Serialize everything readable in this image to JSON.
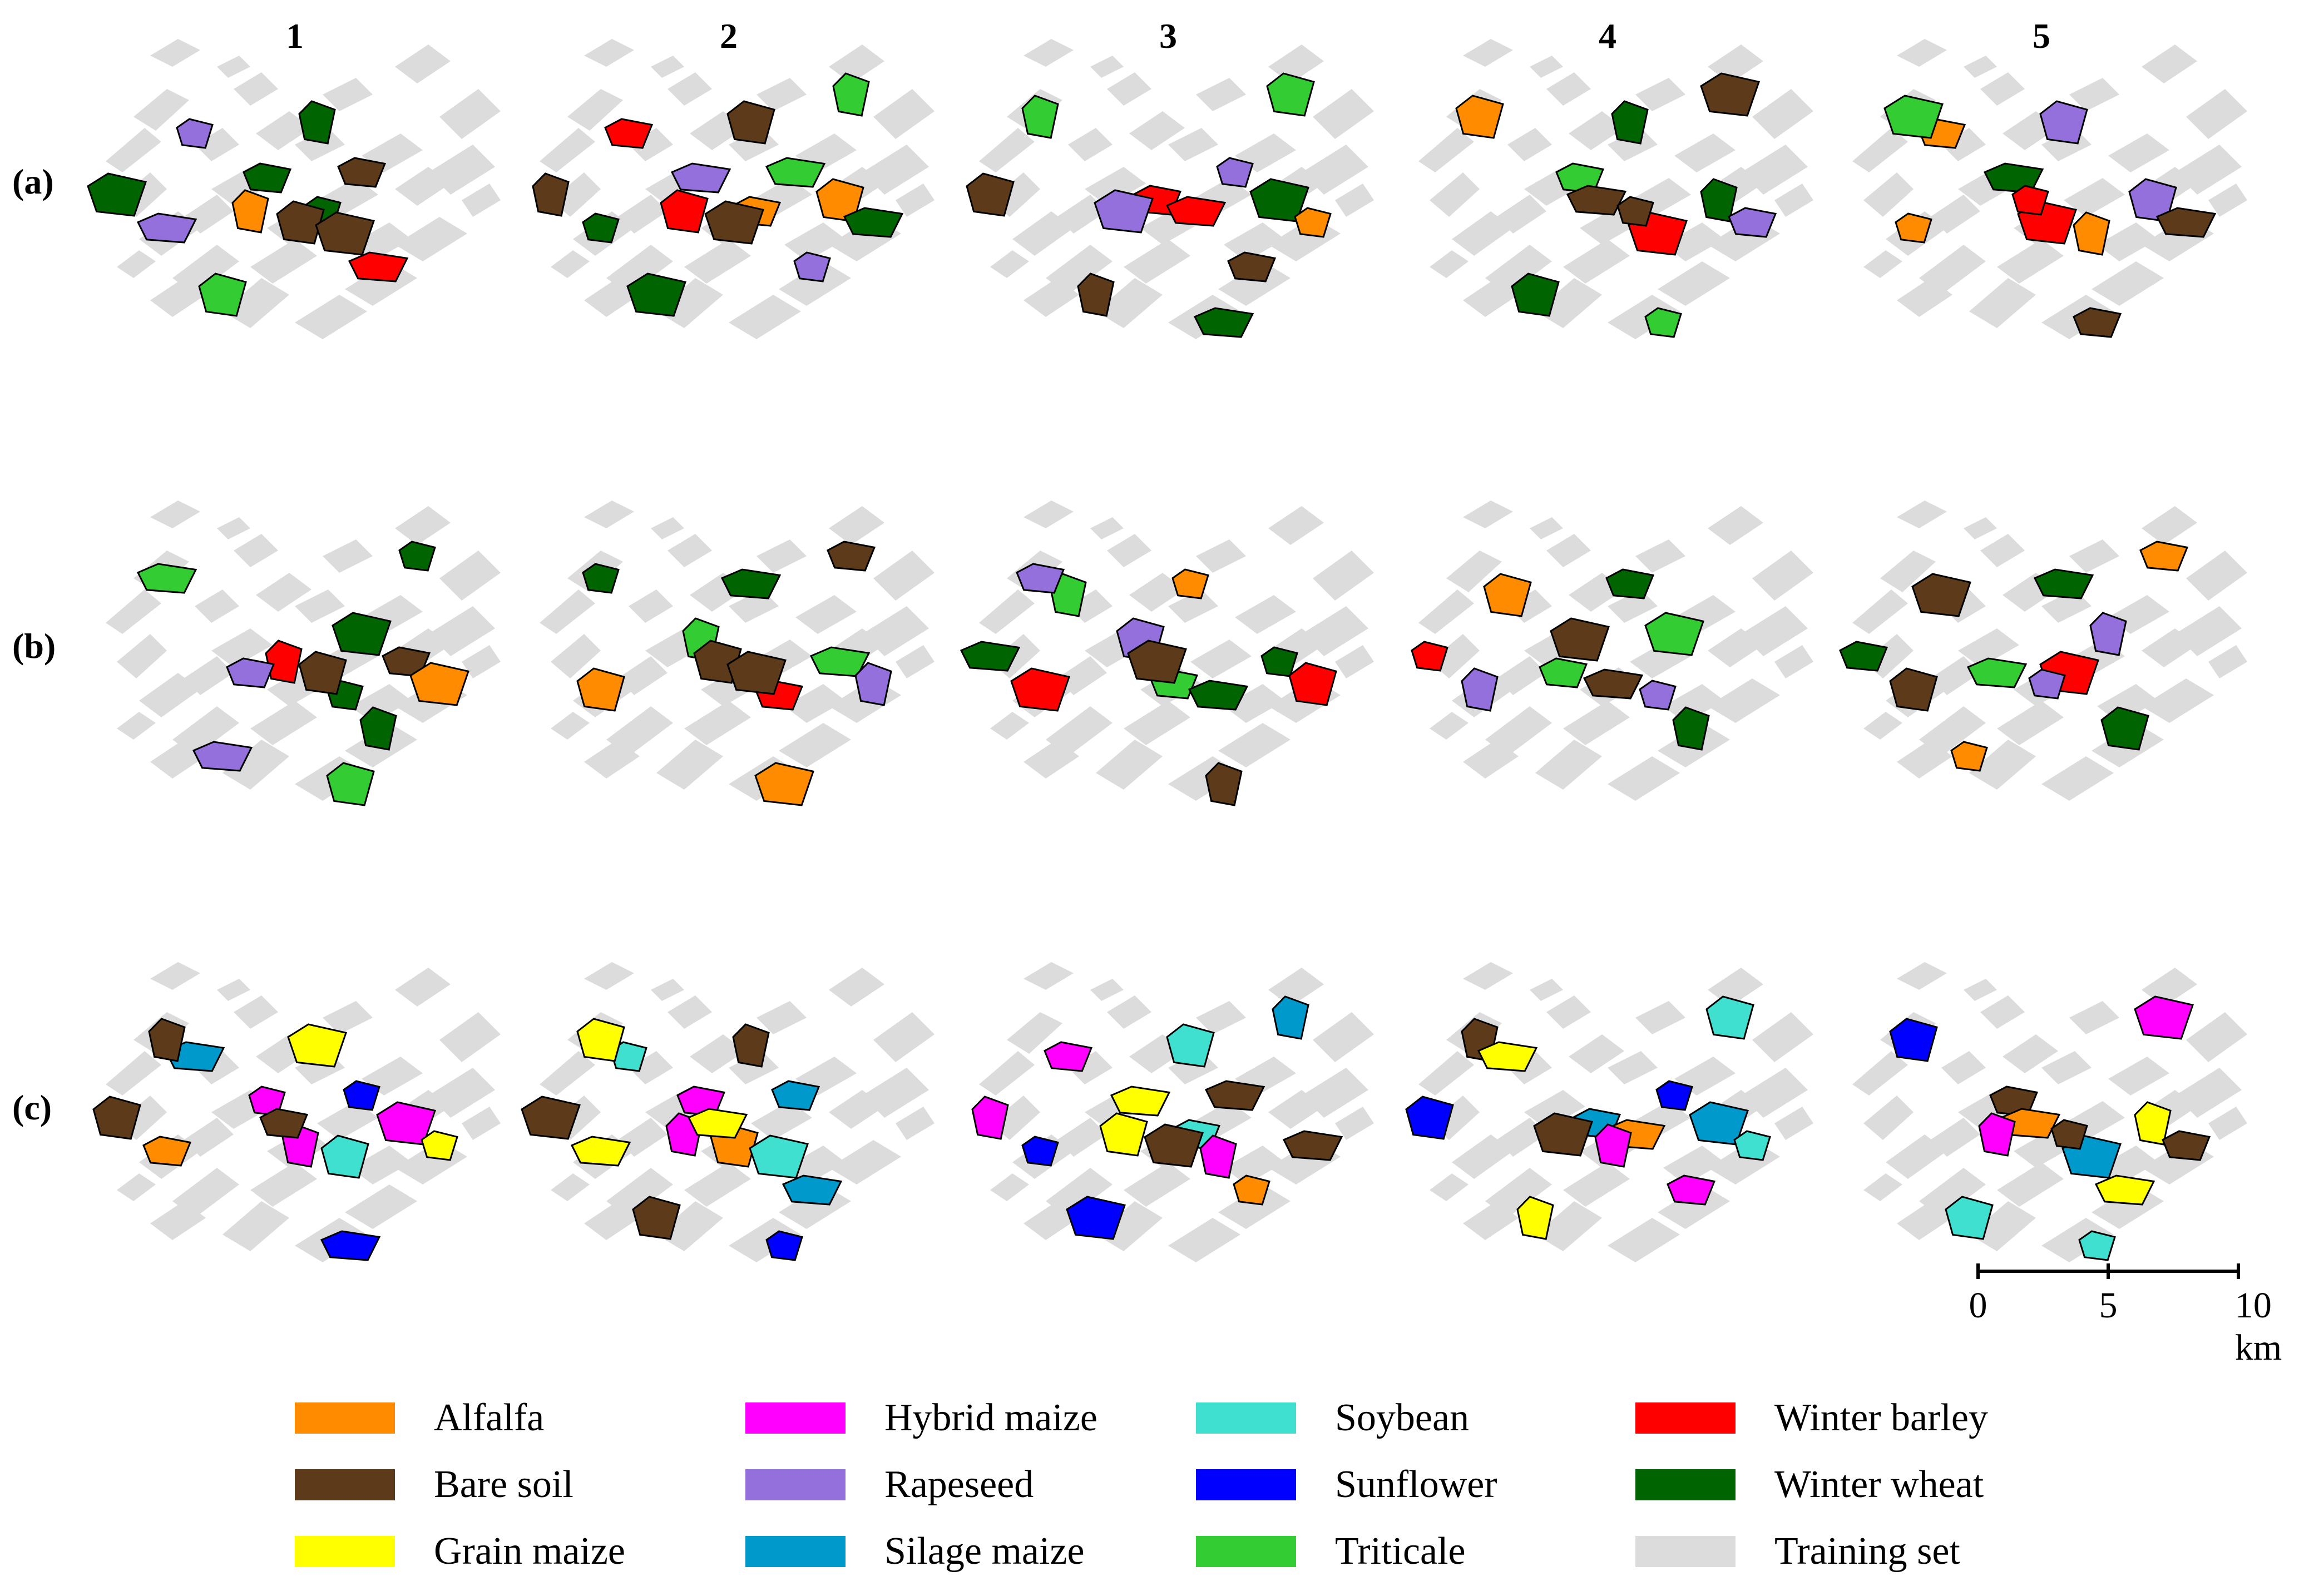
{
  "columns": [
    "1",
    "2",
    "3",
    "4",
    "5"
  ],
  "rows": [
    "(a)",
    "(b)",
    "(c)"
  ],
  "scalebar": {
    "ticks": [
      "0",
      "5",
      "10 km"
    ]
  },
  "legend": {
    "items": [
      {
        "label": "Alfalfa",
        "color": "#FF8C00"
      },
      {
        "label": "Bare soil",
        "color": "#5C3A1A"
      },
      {
        "label": "Grain maize",
        "color": "#FFFF00"
      },
      {
        "label": "Hybrid maize",
        "color": "#FF00FF"
      },
      {
        "label": "Rapeseed",
        "color": "#9370DB"
      },
      {
        "label": "Silage maize",
        "color": "#0099CC"
      },
      {
        "label": "Soybean",
        "color": "#40E0D0"
      },
      {
        "label": "Sunflower",
        "color": "#0000FF"
      },
      {
        "label": "Triticale",
        "color": "#33CC33"
      },
      {
        "label": "Winter barley",
        "color": "#FF0000"
      },
      {
        "label": "Winter wheat",
        "color": "#006400"
      },
      {
        "label": "Training set",
        "color": "#DCDCDC"
      }
    ]
  },
  "panels": {
    "a": [
      [
        "Winter wheat",
        "Triticale",
        "Winter barley",
        "Alfalfa",
        "Bare soil",
        "Winter wheat",
        "Rapeseed",
        "Bare soil",
        "Rapeseed",
        "Winter wheat",
        "Winter wheat",
        "Bare soil"
      ],
      [
        "Alfalfa",
        "Winter wheat",
        "Triticale",
        "Alfalfa",
        "Winter wheat",
        "Rapeseed",
        "Winter barley",
        "Triticale",
        "Bare soil",
        "Winter barley",
        "Bare soil",
        "Winter wheat",
        "Bare soil",
        "Rapeseed"
      ],
      [
        "Winter wheat",
        "Triticale",
        "Winter barley",
        "Winter wheat",
        "Alfalfa",
        "Triticale",
        "Winter barley",
        "Bare soil",
        "Bare soil",
        "Rapeseed",
        "Rapeseed",
        "Bare soil"
      ],
      [
        "Winter wheat",
        "Triticale",
        "Winter barley",
        "Triticale",
        "Alfalfa",
        "Bare soil",
        "Winter wheat",
        "Rapeseed",
        "Bare soil",
        "Bare soil",
        "Winter wheat"
      ],
      [
        "Alfalfa",
        "Winter barley",
        "Alfalfa",
        "Rapeseed",
        "Winter wheat",
        "Alfalfa",
        "Bare soil",
        "Triticale",
        "Winter barley",
        "Rapeseed",
        "Bare soil"
      ]
    ],
    "b": [
      [
        "Winter wheat",
        "Triticale",
        "Triticale",
        "Winter barley",
        "Bare soil",
        "Alfalfa",
        "Winter wheat",
        "Bare soil",
        "Rapeseed",
        "Winter wheat",
        "Rapeseed",
        "Winter wheat"
      ],
      [
        "Alfalfa",
        "Winter wheat",
        "Triticale",
        "Winter barley",
        "Alfalfa",
        "Winter wheat",
        "Bare soil",
        "Triticale",
        "Rapeseed",
        "Bare soil",
        "Bare soil"
      ],
      [
        "Winter wheat",
        "Triticale",
        "Triticale",
        "Winter barley",
        "Alfalfa",
        "Rapeseed",
        "Winter wheat",
        "Bare soil",
        "Rapeseed",
        "Bare soil",
        "Winter wheat",
        "Winter barley"
      ],
      [
        "Winter wheat",
        "Triticale",
        "Triticale",
        "Winter barley",
        "Alfalfa",
        "Bare soil",
        "Rapeseed",
        "Winter wheat",
        "Bare soil",
        "Rapeseed"
      ],
      [
        "Alfalfa",
        "Winter barley",
        "Alfalfa",
        "Winter wheat",
        "Triticale",
        "Rapeseed",
        "Winter wheat",
        "Bare soil",
        "Rapeseed",
        "Bare soil",
        "Winter wheat"
      ]
    ],
    "c": [
      [
        "Sunflower",
        "Bare soil",
        "Silage maize",
        "Hybrid maize",
        "Alfalfa",
        "Grain maize",
        "Hybrid maize",
        "Soybean",
        "Sunflower",
        "Bare soil",
        "Bare soil",
        "Hybrid maize",
        "Grain maize"
      ],
      [
        "Bare soil",
        "Silage maize",
        "Hybrid maize",
        "Silage maize",
        "Bare soil",
        "Soybean",
        "Alfalfa",
        "Grain maize",
        "Bare soil",
        "Hybrid maize",
        "Soybean",
        "Sunflower",
        "Grain maize",
        "Grain maize"
      ],
      [
        "Bare soil",
        "Silage maize",
        "Soybean",
        "Sunflower",
        "Alfalfa",
        "Grain maize",
        "Bare soil",
        "Hybrid maize",
        "Hybrid maize",
        "Bare soil",
        "Sunflower",
        "Soybean",
        "Grain maize",
        "Hybrid maize"
      ],
      [
        "Bare soil",
        "Silage maize",
        "Silage maize",
        "Soybean",
        "Soybean",
        "Alfalfa",
        "Grain maize",
        "Hybrid maize",
        "Bare soil",
        "Sunflower",
        "Sunflower",
        "Grain maize",
        "Hybrid maize"
      ],
      [
        "Bare soil",
        "Silage maize",
        "Soybean",
        "Sunflower",
        "Alfalfa",
        "Grain maize",
        "Bare soil",
        "Hybrid maize",
        "Bare soil",
        "Soybean",
        "Grain maize",
        "Hybrid maize"
      ]
    ]
  }
}
